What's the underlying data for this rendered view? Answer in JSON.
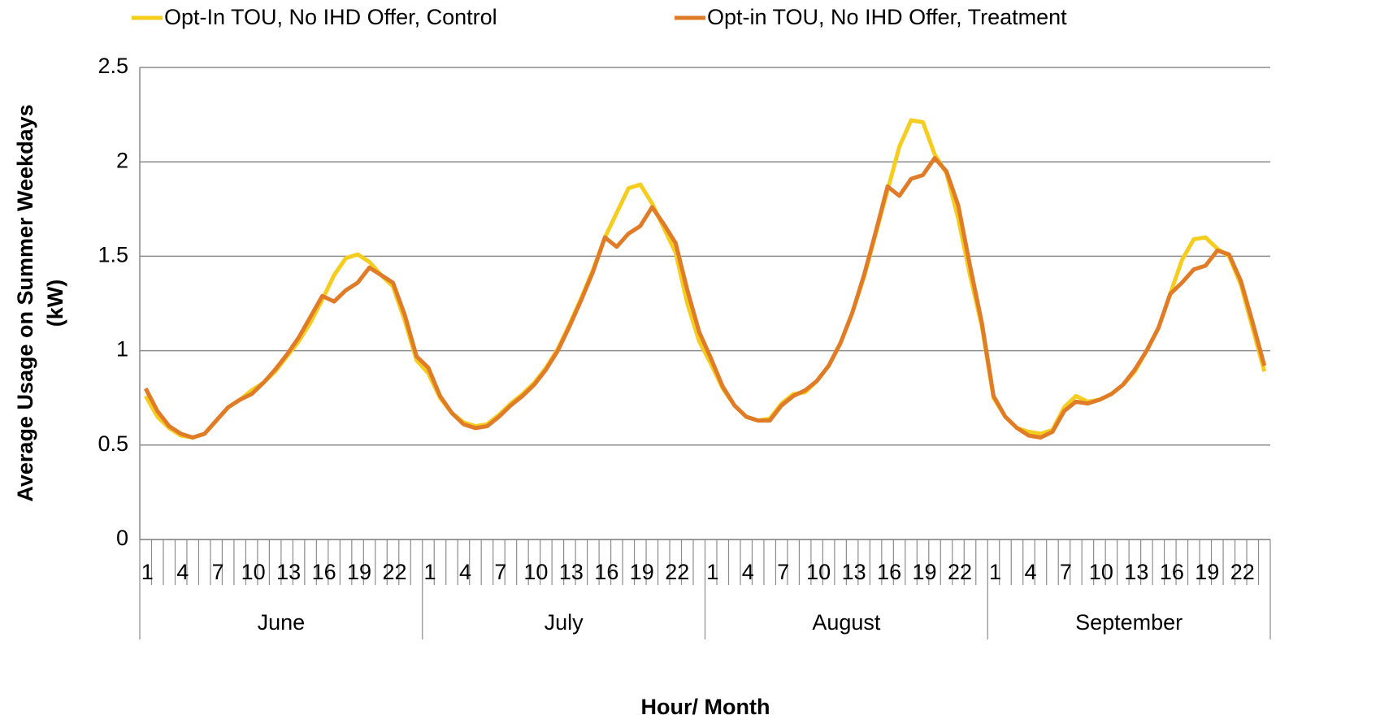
{
  "chart_data": {
    "type": "line",
    "y_axis_title": [
      "Average Usage on Summer Weekdays",
      "(kW)"
    ],
    "x_axis_title": "Hour/ Month",
    "categories": [
      1,
      null,
      null,
      4,
      null,
      null,
      7,
      null,
      null,
      10,
      null,
      null,
      13,
      null,
      null,
      16,
      null,
      null,
      19,
      null,
      null,
      22,
      null,
      null,
      1,
      null,
      null,
      4,
      null,
      null,
      7,
      null,
      null,
      10,
      null,
      null,
      13,
      null,
      null,
      16,
      null,
      null,
      19,
      null,
      null,
      22,
      null,
      null,
      1,
      null,
      null,
      4,
      null,
      null,
      7,
      null,
      null,
      10,
      null,
      null,
      13,
      null,
      null,
      16,
      null,
      null,
      19,
      null,
      null,
      22,
      null,
      null,
      1,
      null,
      null,
      4,
      null,
      null,
      7,
      null,
      null,
      10,
      null,
      null,
      13,
      null,
      null,
      16,
      null,
      null,
      19,
      null,
      null,
      22,
      null,
      null
    ],
    "month_groups": [
      "June",
      "July",
      "August",
      "September"
    ],
    "ylim": [
      0,
      2.5
    ],
    "yticks": [
      0,
      0.5,
      1,
      1.5,
      2,
      2.5
    ],
    "grid": true,
    "legend": "top",
    "series": [
      {
        "name": "Opt-In TOU, No IHD Offer, Control",
        "color": "#f5cd1f",
        "values": [
          0.76,
          0.65,
          0.59,
          0.55,
          0.54,
          0.56,
          0.63,
          0.7,
          0.74,
          0.79,
          0.83,
          0.89,
          0.97,
          1.05,
          1.15,
          1.27,
          1.4,
          1.49,
          1.51,
          1.47,
          1.4,
          1.34,
          1.16,
          0.95,
          0.88,
          0.75,
          0.67,
          0.62,
          0.6,
          0.61,
          0.66,
          0.72,
          0.77,
          0.83,
          0.91,
          1.01,
          1.14,
          1.28,
          1.43,
          1.6,
          1.73,
          1.86,
          1.88,
          1.78,
          1.65,
          1.52,
          1.25,
          1.05,
          0.93,
          0.8,
          0.71,
          0.65,
          0.63,
          0.64,
          0.72,
          0.77,
          0.78,
          0.84,
          0.92,
          1.04,
          1.2,
          1.39,
          1.62,
          1.85,
          2.08,
          2.22,
          2.21,
          2.04,
          1.94,
          1.7,
          1.4,
          1.13,
          0.75,
          0.65,
          0.59,
          0.57,
          0.56,
          0.58,
          0.7,
          0.76,
          0.73,
          0.74,
          0.77,
          0.82,
          0.89,
          1.0,
          1.12,
          1.3,
          1.48,
          1.59,
          1.6,
          1.54,
          1.5,
          1.35,
          1.12,
          0.89
        ]
      },
      {
        "name": "Opt-in TOU, No IHD Offer, Treatment",
        "color": "#e07b28",
        "values": [
          0.8,
          0.68,
          0.6,
          0.56,
          0.54,
          0.56,
          0.63,
          0.7,
          0.74,
          0.77,
          0.83,
          0.9,
          0.98,
          1.07,
          1.18,
          1.29,
          1.26,
          1.32,
          1.36,
          1.44,
          1.4,
          1.36,
          1.19,
          0.97,
          0.91,
          0.76,
          0.67,
          0.61,
          0.59,
          0.6,
          0.65,
          0.71,
          0.76,
          0.82,
          0.9,
          1.0,
          1.13,
          1.27,
          1.42,
          1.6,
          1.55,
          1.62,
          1.66,
          1.76,
          1.67,
          1.57,
          1.32,
          1.1,
          0.96,
          0.81,
          0.71,
          0.65,
          0.63,
          0.63,
          0.71,
          0.76,
          0.79,
          0.84,
          0.92,
          1.04,
          1.2,
          1.4,
          1.63,
          1.87,
          1.82,
          1.91,
          1.93,
          2.02,
          1.95,
          1.77,
          1.45,
          1.15,
          0.76,
          0.65,
          0.59,
          0.55,
          0.54,
          0.57,
          0.68,
          0.73,
          0.72,
          0.74,
          0.77,
          0.82,
          0.9,
          1.0,
          1.12,
          1.3,
          1.36,
          1.43,
          1.45,
          1.53,
          1.51,
          1.37,
          1.15,
          0.92
        ]
      }
    ]
  }
}
